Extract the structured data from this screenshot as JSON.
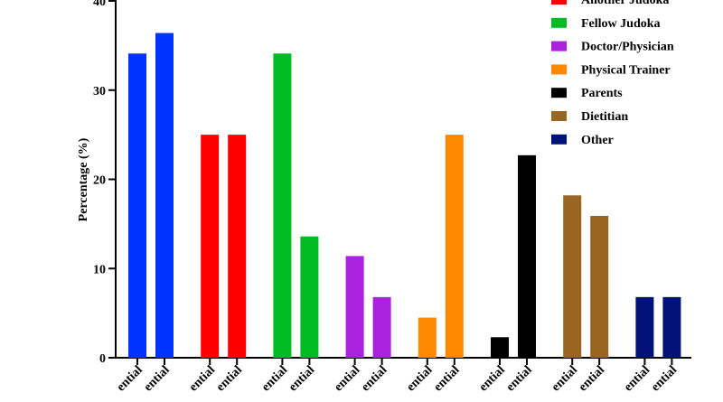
{
  "chart_data": {
    "type": "bar",
    "ylabel": "Percentage (%)",
    "ylim": [
      0,
      40
    ],
    "yticks": [
      0,
      10,
      20,
      30,
      40
    ],
    "grid": false,
    "legend_position": "top-right",
    "tick_label_fragment": "ential",
    "groups": [
      {
        "name": "",
        "color": "#0033ff",
        "values": [
          34.1,
          36.4
        ]
      },
      {
        "name": "Another Judoka",
        "color": "#ff0000",
        "values": [
          25.0,
          25.0
        ]
      },
      {
        "name": "Fellow Judoka",
        "color": "#00bb22",
        "values": [
          34.1,
          13.6
        ]
      },
      {
        "name": "Doctor/Physician",
        "color": "#aa22dd",
        "values": [
          11.4,
          6.8
        ]
      },
      {
        "name": "Physical Trainer",
        "color": "#ff8800",
        "values": [
          4.5,
          25.0
        ]
      },
      {
        "name": "Parents",
        "color": "#000000",
        "values": [
          2.3,
          22.7
        ]
      },
      {
        "name": "Dietitian",
        "color": "#996622",
        "values": [
          18.2,
          15.9
        ]
      },
      {
        "name": "Other",
        "color": "#001177",
        "values": [
          6.8,
          6.8
        ]
      }
    ],
    "legend_entries": [
      {
        "label": "Another Judoka",
        "color": "#ff0000"
      },
      {
        "label": "Fellow Judoka",
        "color": "#00bb22"
      },
      {
        "label": "Doctor/Physician",
        "color": "#aa22dd"
      },
      {
        "label": "Physical Trainer",
        "color": "#ff8800"
      },
      {
        "label": "Parents",
        "color": "#000000"
      },
      {
        "label": "Dietitian",
        "color": "#996622"
      },
      {
        "label": "Other",
        "color": "#001177"
      }
    ]
  }
}
